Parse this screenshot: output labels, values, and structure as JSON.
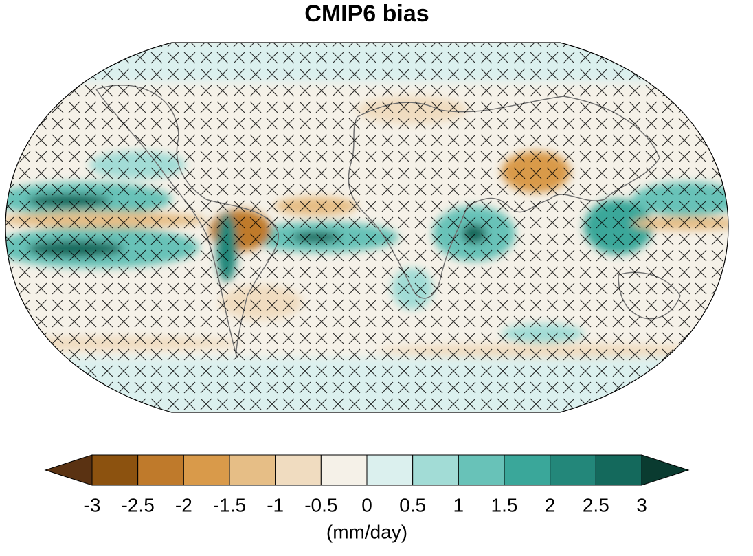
{
  "title": "CMIP6 bias",
  "colorbar": {
    "ticks": [
      -3,
      -2.5,
      -2,
      -1.5,
      -1,
      -0.5,
      0,
      0.5,
      1,
      1.5,
      2,
      2.5,
      3
    ],
    "colors": [
      "#5a3212",
      "#8c520f",
      "#bf7a2b",
      "#d99a4a",
      "#e6be86",
      "#f0dcc0",
      "#f5f1e8",
      "#dbf0ee",
      "#a2dcd6",
      "#68c2b8",
      "#3aa79a",
      "#23877a",
      "#14695c",
      "#0a3b30"
    ],
    "label": "(mm/day)"
  }
}
